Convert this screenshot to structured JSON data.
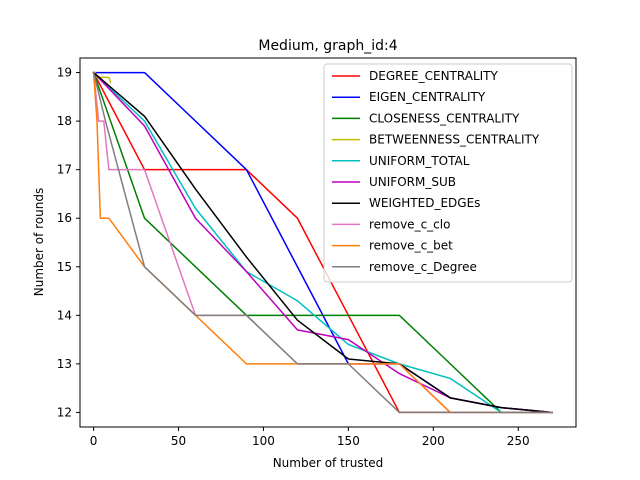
{
  "chart_data": {
    "type": "line",
    "title": "Medium, graph_id:4",
    "xlabel": "Number of trusted",
    "ylabel": "Number of rounds",
    "xlim": [
      -8,
      284
    ],
    "ylim": [
      11.7,
      19.3
    ],
    "xticks": [
      0,
      50,
      100,
      150,
      200,
      250
    ],
    "yticks": [
      12,
      13,
      14,
      15,
      16,
      17,
      18,
      19
    ],
    "grid": false,
    "legend_position": "top-right",
    "series": [
      {
        "name": "DEGREE_CENTRALITY",
        "color": "#ff0000",
        "x": [
          0,
          30,
          60,
          90,
          120,
          150,
          180,
          210,
          240,
          270
        ],
        "y": [
          19,
          17,
          17,
          17,
          16,
          14,
          12,
          12,
          12,
          12
        ]
      },
      {
        "name": "EIGEN_CENTRALITY",
        "color": "#0000ff",
        "x": [
          0,
          30,
          60,
          90,
          120,
          150,
          180,
          210,
          240,
          270
        ],
        "y": [
          19,
          19,
          18,
          17,
          15,
          13,
          13,
          12.3,
          12.1,
          12
        ]
      },
      {
        "name": "CLOSENESS_CENTRALITY",
        "color": "#008000",
        "x": [
          0,
          30,
          60,
          90,
          120,
          150,
          180,
          210,
          240,
          270
        ],
        "y": [
          19,
          16,
          15,
          14,
          14,
          14,
          14,
          13,
          12,
          12
        ]
      },
      {
        "name": "BETWEENNESS_CENTRALITY",
        "color": "#bfbf00",
        "x": [
          0,
          1,
          2,
          3,
          4,
          5,
          6,
          7,
          8,
          9,
          10
        ],
        "y": [
          19,
          19,
          18.9,
          18.9,
          18.9,
          18.9,
          18.9,
          18.9,
          18.9,
          18.9,
          18.8
        ]
      },
      {
        "name": "UNIFORM_TOTAL",
        "color": "#00bfbf",
        "x": [
          0,
          30,
          60,
          90,
          120,
          150,
          180,
          210,
          240,
          270
        ],
        "y": [
          19,
          18,
          16.2,
          14.9,
          14.3,
          13.4,
          13,
          12.7,
          12,
          12
        ]
      },
      {
        "name": "UNIFORM_SUB",
        "color": "#bf00bf",
        "x": [
          0,
          30,
          60,
          90,
          120,
          150,
          180,
          210,
          240,
          270
        ],
        "y": [
          19,
          17.9,
          16,
          14.9,
          13.7,
          13.5,
          12.8,
          12.3,
          12.1,
          12
        ]
      },
      {
        "name": "WEIGHTED_EDGEs",
        "color": "#000000",
        "x": [
          0,
          30,
          60,
          90,
          120,
          150,
          180,
          210,
          240,
          270
        ],
        "y": [
          19,
          18.1,
          16.6,
          15.2,
          13.9,
          13.1,
          13,
          12.3,
          12.1,
          12
        ]
      },
      {
        "name": "remove_c_clo",
        "color": "#e377c2",
        "x": [
          0,
          3,
          6,
          9,
          30,
          60,
          90,
          120,
          150,
          180,
          210,
          240,
          270
        ],
        "y": [
          19,
          18,
          18,
          17,
          17,
          14,
          14,
          13,
          13,
          13,
          12,
          12,
          12
        ]
      },
      {
        "name": "remove_c_bet",
        "color": "#ff7f0e",
        "x": [
          0,
          2,
          4,
          9,
          30,
          60,
          90,
          120,
          150,
          180,
          210,
          240,
          270
        ],
        "y": [
          19,
          18,
          16,
          16,
          15,
          14,
          13,
          13,
          13,
          13,
          12,
          12,
          12
        ]
      },
      {
        "name": "remove_c_Degree",
        "color": "#7f7f7f",
        "x": [
          0,
          7,
          30,
          60,
          90,
          120,
          150,
          180,
          210,
          240,
          270
        ],
        "y": [
          19,
          18,
          15,
          14,
          14,
          13,
          13,
          12,
          12,
          12,
          12
        ]
      }
    ]
  }
}
